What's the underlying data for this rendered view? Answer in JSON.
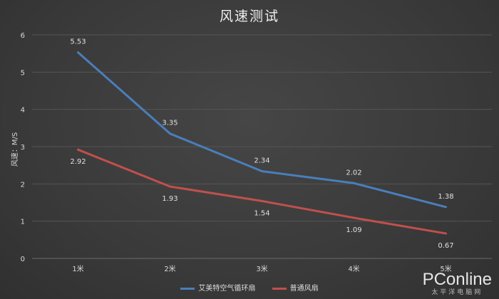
{
  "chart_data": {
    "type": "line",
    "title": "风速测试",
    "ylabel": "风速：M/S",
    "xlabel": "",
    "categories": [
      "1米",
      "2米",
      "3米",
      "4米",
      "5米"
    ],
    "ylim": [
      0,
      6
    ],
    "yticks": [
      "0",
      "1",
      "2",
      "3",
      "4",
      "5",
      "6"
    ],
    "grid": true,
    "legend_position": "bottom",
    "series": [
      {
        "name": "艾美特空气循环扇",
        "values": [
          5.53,
          3.35,
          2.34,
          2.02,
          1.38
        ],
        "labels": [
          "5.53",
          "3.35",
          "2.34",
          "2.02",
          "1.38"
        ],
        "color": "#4a7ebb"
      },
      {
        "name": "普通风扇",
        "values": [
          2.92,
          1.93,
          1.54,
          1.09,
          0.67
        ],
        "labels": [
          "2.92",
          "1.93",
          "1.54",
          "1.09",
          "0.67"
        ],
        "color": "#c0504d"
      }
    ]
  },
  "watermark": {
    "logo": "PConline",
    "sub": "太平洋电脑网"
  }
}
